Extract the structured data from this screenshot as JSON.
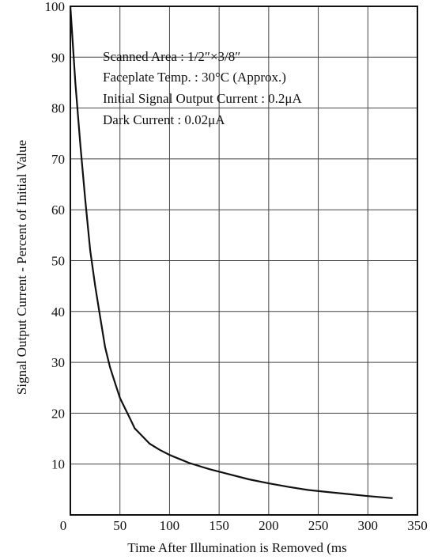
{
  "chart_data": {
    "type": "line",
    "title": "",
    "xlabel": "Time After Illumination is Removed (ms",
    "ylabel": "Signal Output Current - Percent of Initial Value",
    "xlim": [
      0,
      350
    ],
    "ylim": [
      0,
      100
    ],
    "x_ticks": [
      "0",
      "50",
      "100",
      "150",
      "200",
      "250",
      "300",
      "350"
    ],
    "y_ticks": [
      "10",
      "20",
      "30",
      "40",
      "50",
      "60",
      "70",
      "80",
      "90",
      "100"
    ],
    "grid": true,
    "annotations": [
      "Scanned Area : 1/2″×3/8″",
      "Faceplate Temp. : 30°C (Approx.)",
      "Initial Signal Output Current : 0.2μA",
      "Dark Current : 0.02μA"
    ],
    "series": [
      {
        "x": [
          0,
          5,
          10,
          15,
          20,
          25,
          30,
          35,
          40,
          45,
          50,
          55,
          60,
          65,
          70,
          80,
          90,
          100,
          110,
          120,
          140,
          160,
          180,
          200,
          220,
          240,
          260,
          280,
          300,
          325
        ],
        "y": [
          100,
          85,
          73,
          62,
          52,
          45,
          39,
          33,
          29,
          26,
          23,
          21,
          19,
          17,
          16,
          14,
          12.8,
          11.8,
          11,
          10.2,
          9,
          8,
          7,
          6.2,
          5.5,
          4.9,
          4.5,
          4.1,
          3.7,
          3.3
        ]
      }
    ]
  }
}
